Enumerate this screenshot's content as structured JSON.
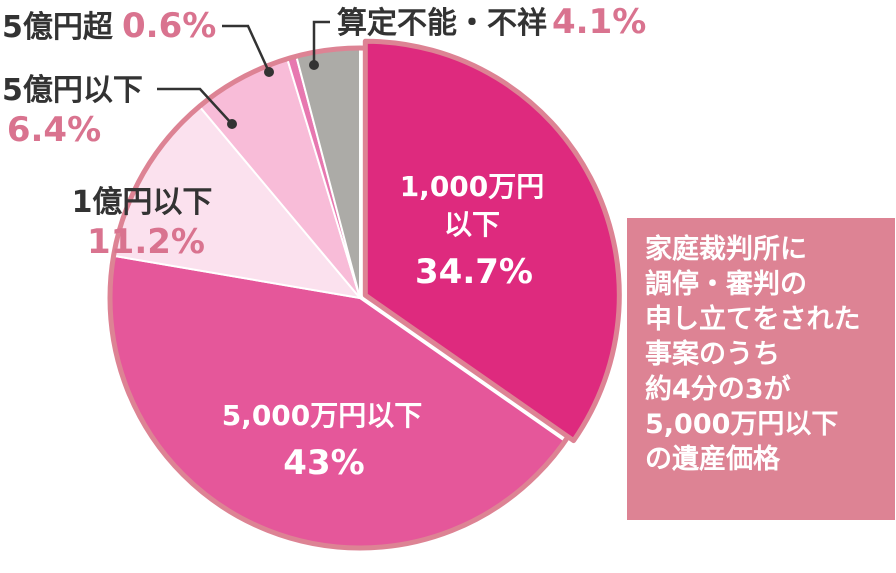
{
  "chart_data": {
    "type": "pie",
    "slices": [
      {
        "label_lines": [
          "1,000万円",
          "以下"
        ],
        "value_text": "34.7%",
        "value": 34.7,
        "color": "#de2a7e"
      },
      {
        "label_lines": [
          "5,000万円以下"
        ],
        "value_text": "43%",
        "value": 43,
        "color": "#e5579a"
      },
      {
        "label_lines": [
          "1億円以下"
        ],
        "value_text": "11.2%",
        "value": 11.2,
        "color": "#fbe1ee"
      },
      {
        "label_lines": [
          "5億円以下"
        ],
        "value_text": "6.4%",
        "value": 6.4,
        "color": "#f8bcd8"
      },
      {
        "label_lines": [
          "5億円超"
        ],
        "value_text": "0.6%",
        "value": 0.6,
        "color": "#e778b0"
      },
      {
        "label_lines": [
          "算定不能・不祥"
        ],
        "value_text": "4.1%",
        "value": 4.1,
        "color": "#acaba7"
      }
    ],
    "colors": {
      "outline": "#dd8394",
      "dark_text": "#333333",
      "pink_text": "#d9738f",
      "callout_bg": "#dd8394"
    }
  },
  "callout": {
    "lines": [
      "家庭裁判所に",
      "調停・審判の",
      "申し立てをされた",
      "事案のうち",
      "約4分の3が",
      "5,000万円以下",
      "の遺産価格"
    ]
  }
}
